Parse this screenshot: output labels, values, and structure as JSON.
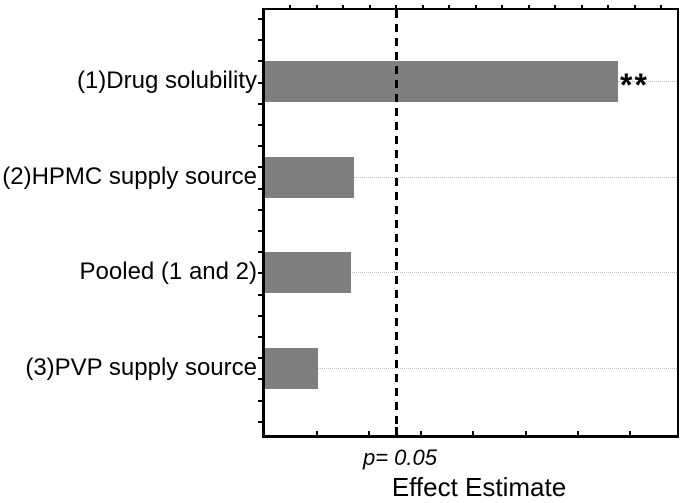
{
  "chart_data": {
    "type": "bar",
    "orientation": "horizontal",
    "title": "",
    "xlabel": "Effect Estimate",
    "ylabel": "",
    "categories": [
      "(1)Drug solubility",
      "(2)HPMC supply source",
      "Pooled (1 and 2)",
      "(3)PVP supply source"
    ],
    "values_pct_of_axis": [
      85.7,
      21.6,
      20.9,
      12.9
    ],
    "x_axis_numeric_labels": false,
    "gridlines": "dotted horizontal at each category center",
    "threshold": {
      "label": "p= 0.05",
      "position_pct_of_axis": 31.8,
      "style": "black vertical dashed line"
    },
    "annotations": [
      {
        "category": "(1)Drug solubility",
        "text": "**",
        "meaning": "significant effect"
      }
    ],
    "colors": {
      "bar": "#7f7f7f",
      "frame": "#000000",
      "gridline": "#b9b9b9",
      "threshold_line": "#000000",
      "background": "#ffffff"
    },
    "legend": null
  }
}
